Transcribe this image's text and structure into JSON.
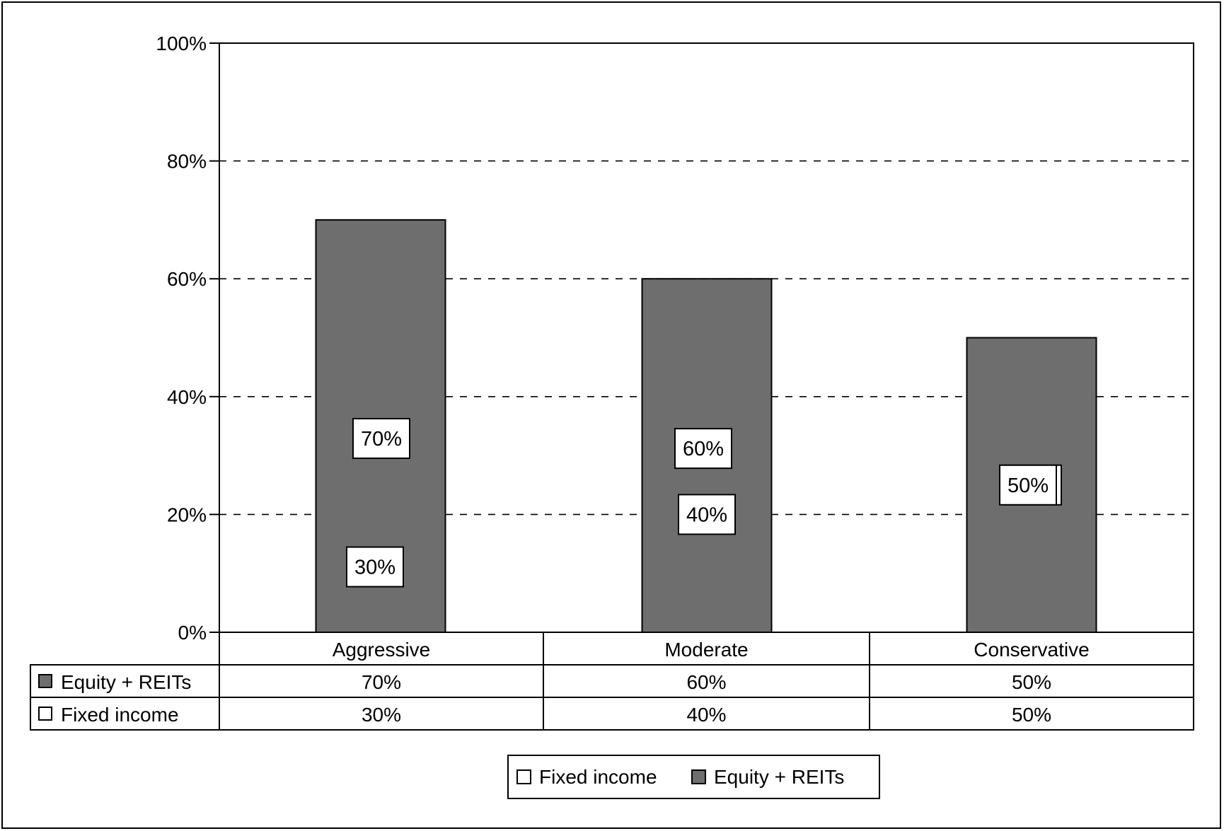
{
  "chart_data": {
    "type": "bar",
    "stacked": true,
    "categories": [
      "Aggressive",
      "Moderate",
      "Conservative"
    ],
    "series": [
      {
        "name": "Fixed income",
        "values": [
          30,
          40,
          50
        ],
        "color": "#ffffff",
        "labels": [
          "30%",
          "40%",
          "50%"
        ]
      },
      {
        "name": "Equity + REITs",
        "values": [
          70,
          60,
          50
        ],
        "color": "#6e6e6e",
        "labels": [
          "70%",
          "60%",
          "50%"
        ]
      }
    ],
    "y_ticks": [
      "0%",
      "20%",
      "40%",
      "60%",
      "80%",
      "100%"
    ],
    "ylim": [
      0,
      100
    ],
    "grid": "horizontal dashed",
    "legend_position": "bottom-center",
    "data_table": {
      "rows": [
        {
          "name": "Equity + REITs",
          "color": "#6e6e6e",
          "cells": [
            "70%",
            "60%",
            "50%"
          ]
        },
        {
          "name": "Fixed income",
          "color": "#ffffff",
          "cells": [
            "30%",
            "40%",
            "50%"
          ]
        }
      ]
    },
    "legend": [
      {
        "name": "Fixed income",
        "color": "#ffffff"
      },
      {
        "name": "Equity + REITs",
        "color": "#6e6e6e"
      }
    ]
  }
}
